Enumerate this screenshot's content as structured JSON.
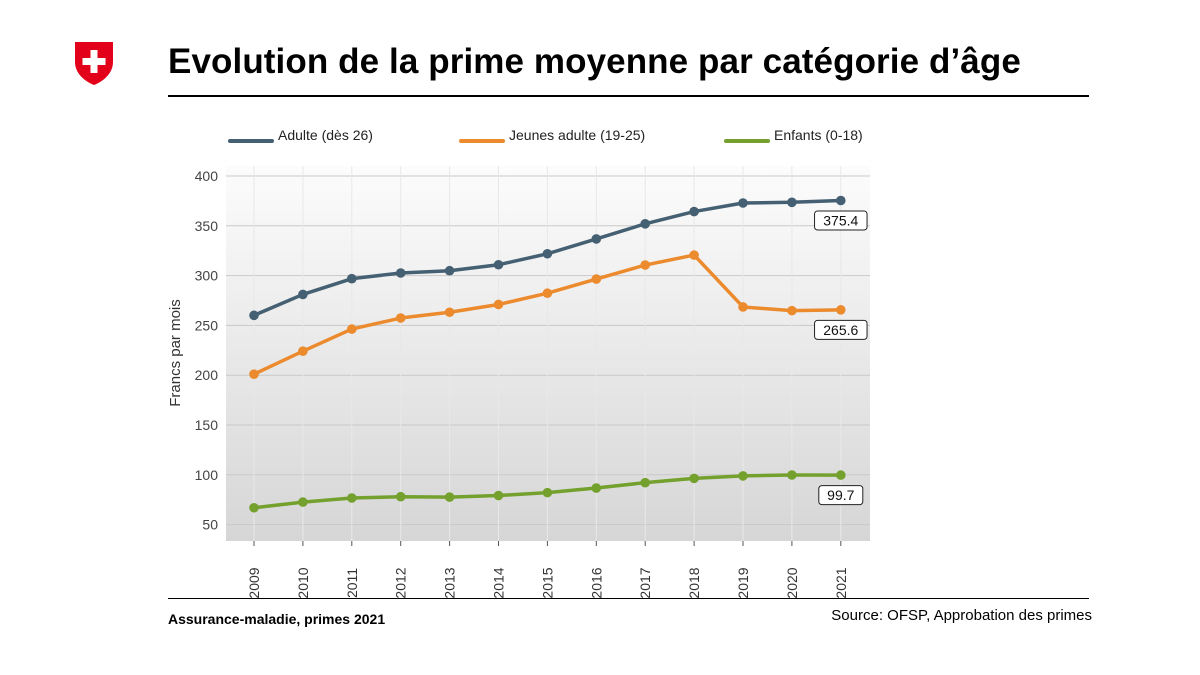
{
  "header": {
    "title": "Evolution de la prime moyenne par catégorie d’âge"
  },
  "footer": {
    "left": "Assurance-maladie, primes 2021",
    "right": "Source: OFSP, Approbation des primes"
  },
  "colors": {
    "logo_red": "#e3001b",
    "adulte": "#456073",
    "jeunes": "#ec8a2e",
    "enfants": "#74a12e"
  },
  "chart_data": {
    "type": "line",
    "title": "",
    "xlabel": "",
    "ylabel": "Francs par mois",
    "x": [
      "2009",
      "2010",
      "2011",
      "2012",
      "2013",
      "2014",
      "2015",
      "2016",
      "2017",
      "2018",
      "2019",
      "2020",
      "2021"
    ],
    "ylim": [
      33,
      400
    ],
    "yticks": [
      50,
      100,
      150,
      200,
      250,
      300,
      350,
      400
    ],
    "grid": true,
    "legend_position": "top",
    "series": [
      {
        "name": "Adulte (dès 26)",
        "color": "#456073",
        "values": [
          260.1,
          281.1,
          296.9,
          302.6,
          304.9,
          310.9,
          321.9,
          336.8,
          352.0,
          364.3,
          372.9,
          373.6,
          375.4
        ],
        "end_label": "375.4"
      },
      {
        "name": "Jeunes adulte (19-25)",
        "color": "#ec8a2e",
        "values": [
          201.0,
          224.1,
          246.3,
          257.4,
          263.2,
          271.0,
          282.3,
          296.5,
          310.6,
          320.6,
          268.5,
          264.8,
          265.6
        ],
        "end_label": "265.6"
      },
      {
        "name": "Enfants (0-18)",
        "color": "#74a12e",
        "values": [
          66.9,
          72.6,
          76.7,
          78.0,
          77.6,
          79.2,
          82.1,
          86.7,
          92.1,
          96.4,
          98.9,
          99.8,
          99.7
        ],
        "end_label": "99.7"
      }
    ]
  }
}
